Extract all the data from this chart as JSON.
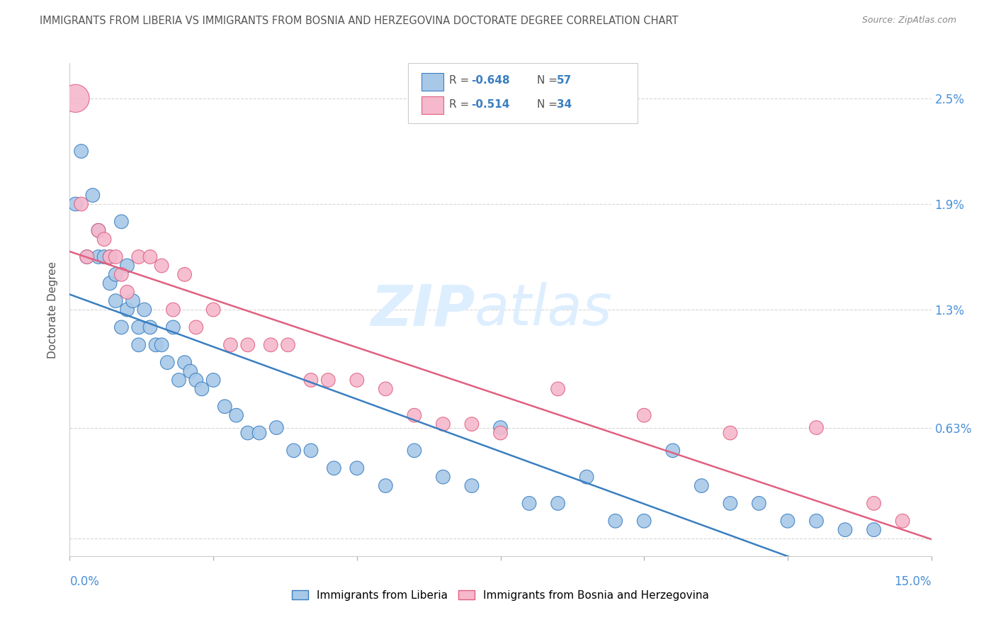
{
  "title": "IMMIGRANTS FROM LIBERIA VS IMMIGRANTS FROM BOSNIA AND HERZEGOVINA DOCTORATE DEGREE CORRELATION CHART",
  "source": "Source: ZipAtlas.com",
  "ylabel": "Doctorate Degree",
  "ytick_vals": [
    0.0,
    0.0063,
    0.013,
    0.019,
    0.025
  ],
  "ytick_labels": [
    "",
    "0.63%",
    "1.3%",
    "1.9%",
    "2.5%"
  ],
  "xlim": [
    0.0,
    0.15
  ],
  "ylim": [
    -0.001,
    0.027
  ],
  "color_liberia": "#a8c8e8",
  "color_bosnia": "#f5b8cc",
  "line_color_liberia": "#3a7fc1",
  "line_color_bosnia": "#e06080",
  "axis_label_color": "#4a90d9",
  "title_color": "#555555",
  "source_color": "#888888",
  "grid_color": "#cccccc",
  "background_color": "#ffffff",
  "watermark_zip": "ZIP",
  "watermark_atlas": "atlas",
  "watermark_color": "#ddeeff",
  "legend_r1_label": "R = ",
  "legend_r1_val": "-0.648",
  "legend_n1_label": "N = ",
  "legend_n1_val": "57",
  "legend_r2_label": "R = ",
  "legend_r2_val": "-0.514",
  "legend_n2_label": "N = ",
  "legend_n2_val": "34",
  "bottom_legend_liberia": "Immigrants from Liberia",
  "bottom_legend_bosnia": "Immigrants from Bosnia and Herzegovina",
  "liberia_x": [
    0.001,
    0.002,
    0.003,
    0.004,
    0.005,
    0.005,
    0.006,
    0.007,
    0.007,
    0.008,
    0.008,
    0.009,
    0.009,
    0.01,
    0.01,
    0.011,
    0.012,
    0.012,
    0.013,
    0.014,
    0.015,
    0.016,
    0.017,
    0.018,
    0.019,
    0.02,
    0.021,
    0.022,
    0.023,
    0.025,
    0.027,
    0.029,
    0.031,
    0.033,
    0.036,
    0.039,
    0.042,
    0.046,
    0.05,
    0.055,
    0.06,
    0.065,
    0.07,
    0.075,
    0.08,
    0.085,
    0.09,
    0.095,
    0.1,
    0.105,
    0.11,
    0.115,
    0.12,
    0.125,
    0.13,
    0.135,
    0.14
  ],
  "liberia_y": [
    0.019,
    0.022,
    0.016,
    0.0195,
    0.016,
    0.0175,
    0.016,
    0.016,
    0.0145,
    0.015,
    0.0135,
    0.018,
    0.012,
    0.0155,
    0.013,
    0.0135,
    0.012,
    0.011,
    0.013,
    0.012,
    0.011,
    0.011,
    0.01,
    0.012,
    0.009,
    0.01,
    0.0095,
    0.009,
    0.0085,
    0.009,
    0.0075,
    0.007,
    0.006,
    0.006,
    0.0063,
    0.005,
    0.005,
    0.004,
    0.004,
    0.003,
    0.005,
    0.0035,
    0.003,
    0.0063,
    0.002,
    0.002,
    0.0035,
    0.001,
    0.001,
    0.005,
    0.003,
    0.002,
    0.002,
    0.001,
    0.001,
    0.0005,
    0.0005
  ],
  "liberia_sizes": [
    200,
    200,
    200,
    200,
    200,
    200,
    200,
    200,
    200,
    200,
    200,
    200,
    200,
    200,
    200,
    200,
    200,
    200,
    200,
    200,
    200,
    200,
    200,
    200,
    200,
    200,
    200,
    200,
    200,
    200,
    200,
    200,
    200,
    200,
    200,
    200,
    200,
    200,
    200,
    200,
    200,
    200,
    200,
    200,
    200,
    200,
    200,
    200,
    200,
    200,
    200,
    200,
    200,
    200,
    200,
    200,
    200
  ],
  "bosnia_x": [
    0.001,
    0.002,
    0.003,
    0.005,
    0.006,
    0.007,
    0.008,
    0.009,
    0.01,
    0.012,
    0.014,
    0.016,
    0.018,
    0.02,
    0.022,
    0.025,
    0.028,
    0.031,
    0.035,
    0.038,
    0.042,
    0.045,
    0.05,
    0.055,
    0.06,
    0.065,
    0.07,
    0.075,
    0.085,
    0.1,
    0.115,
    0.13,
    0.14,
    0.145
  ],
  "bosnia_y": [
    0.025,
    0.019,
    0.016,
    0.0175,
    0.017,
    0.016,
    0.016,
    0.015,
    0.014,
    0.016,
    0.016,
    0.0155,
    0.013,
    0.015,
    0.012,
    0.013,
    0.011,
    0.011,
    0.011,
    0.011,
    0.009,
    0.009,
    0.009,
    0.0085,
    0.007,
    0.0065,
    0.0065,
    0.006,
    0.0085,
    0.007,
    0.006,
    0.0063,
    0.002,
    0.001
  ],
  "bosnia_sizes": [
    800,
    200,
    200,
    200,
    200,
    200,
    200,
    200,
    200,
    200,
    200,
    200,
    200,
    200,
    200,
    200,
    200,
    200,
    200,
    200,
    200,
    200,
    200,
    200,
    200,
    200,
    200,
    200,
    200,
    200,
    200,
    200,
    200,
    200
  ]
}
